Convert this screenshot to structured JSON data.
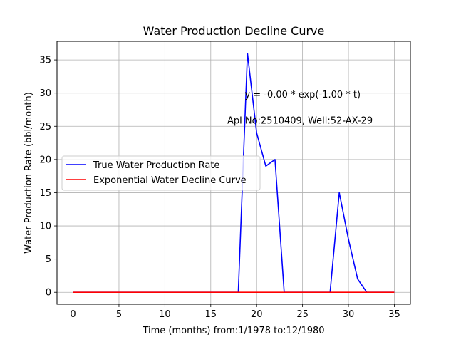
{
  "chart_data": {
    "type": "line",
    "title": "Water Production Decline Curve",
    "xlabel": "Time (months) from:1/1978 to:12/1980",
    "ylabel": "Water Production Rate (bbl/month)",
    "xlim": [
      -1.75,
      36.75
    ],
    "ylim": [
      -1.8,
      37.8
    ],
    "xticks": [
      0,
      5,
      10,
      15,
      20,
      25,
      30,
      35
    ],
    "yticks": [
      0,
      5,
      10,
      15,
      20,
      25,
      30,
      35
    ],
    "grid": true,
    "legend_position": "center-left",
    "annotations": [
      {
        "text": "y = -0.00 * exp(-1.00 * t)",
        "x": 18.7,
        "y": 29.3
      },
      {
        "text": "Api No:2510409, Well:52-AX-29",
        "x": 16.8,
        "y": 25.4
      }
    ],
    "series": [
      {
        "name": "True Water Production Rate",
        "color": "#0000ff",
        "x": [
          0,
          1,
          2,
          3,
          4,
          5,
          6,
          7,
          8,
          9,
          10,
          11,
          12,
          13,
          14,
          15,
          16,
          17,
          18,
          19,
          20,
          21,
          22,
          23,
          24,
          25,
          26,
          27,
          28,
          29,
          30,
          31,
          32,
          33,
          34,
          35
        ],
        "y": [
          0,
          0,
          0,
          0,
          0,
          0,
          0,
          0,
          0,
          0,
          0,
          0,
          0,
          0,
          0,
          0,
          0,
          0,
          0,
          36,
          24,
          19,
          20,
          0,
          0,
          0,
          0,
          0,
          0,
          15,
          8,
          2,
          0,
          0,
          0,
          0
        ]
      },
      {
        "name": "Exponential Water Decline Curve",
        "color": "#ff0000",
        "x": [
          0,
          1,
          2,
          3,
          4,
          5,
          6,
          7,
          8,
          9,
          10,
          11,
          12,
          13,
          14,
          15,
          16,
          17,
          18,
          19,
          20,
          21,
          22,
          23,
          24,
          25,
          26,
          27,
          28,
          29,
          30,
          31,
          32,
          33,
          34,
          35
        ],
        "y": [
          0,
          0,
          0,
          0,
          0,
          0,
          0,
          0,
          0,
          0,
          0,
          0,
          0,
          0,
          0,
          0,
          0,
          0,
          0,
          0,
          0,
          0,
          0,
          0,
          0,
          0,
          0,
          0,
          0,
          0,
          0,
          0,
          0,
          0,
          0,
          0
        ]
      }
    ]
  }
}
